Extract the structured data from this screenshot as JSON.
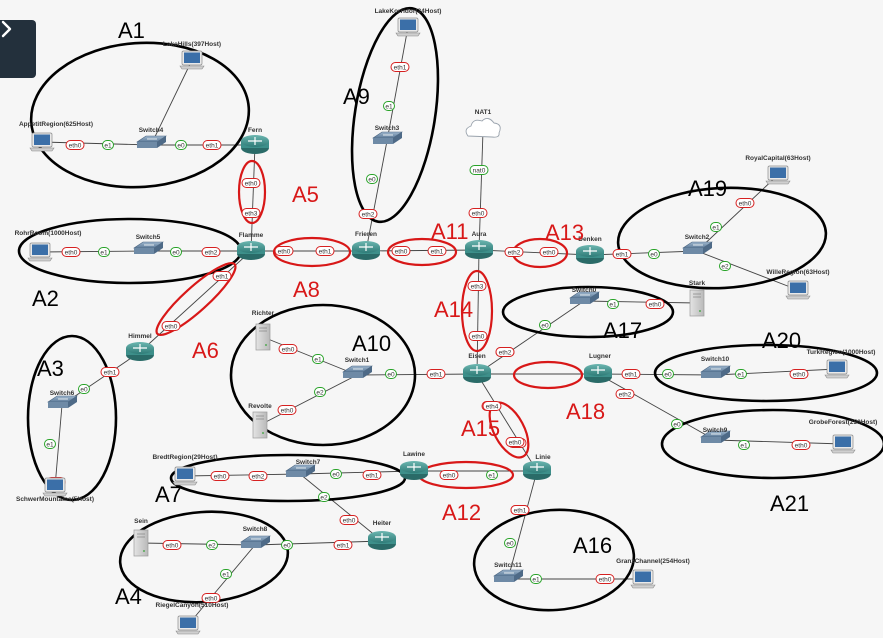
{
  "app": {
    "sidebar_toggle_icon": "chevron-right-icon"
  },
  "colors": {
    "link": "#444444",
    "port_eth_border": "#d62020",
    "port_e_border": "#29a329",
    "area_black": "#000000",
    "area_red": "#d81818",
    "router_fill": "#3d8f8a",
    "switch_fill": "#6e8aa6"
  },
  "nodes": [
    {
      "id": "lakehills",
      "label": "LakeHills(397Host)",
      "type": "host"
    },
    {
      "id": "apetit",
      "label": "AppetitRegion(625Host)",
      "type": "host"
    },
    {
      "id": "switch4",
      "label": "Switch4",
      "type": "switch"
    },
    {
      "id": "fern",
      "label": "Fern",
      "type": "router"
    },
    {
      "id": "lakekorridor",
      "label": "LakeKorridor(24Host)",
      "type": "host"
    },
    {
      "id": "switch3",
      "label": "Switch3",
      "type": "switch"
    },
    {
      "id": "nat1",
      "label": "NAT1",
      "type": "cloud"
    },
    {
      "id": "rohr",
      "label": "RohrRoom(1000Host)",
      "type": "host"
    },
    {
      "id": "switch5",
      "label": "Switch5",
      "type": "switch"
    },
    {
      "id": "flamme",
      "label": "Flamme",
      "type": "router"
    },
    {
      "id": "frieren",
      "label": "Frieren",
      "type": "router"
    },
    {
      "id": "aura",
      "label": "Aura",
      "type": "router"
    },
    {
      "id": "denken",
      "label": "Denken",
      "type": "router"
    },
    {
      "id": "royal",
      "label": "RoyalCapital(63Host)",
      "type": "host"
    },
    {
      "id": "switch2",
      "label": "Switch2",
      "type": "switch"
    },
    {
      "id": "wille",
      "label": "WilleRegion(63Host)",
      "type": "host"
    },
    {
      "id": "himmel",
      "label": "Himmel",
      "type": "router"
    },
    {
      "id": "richter",
      "label": "Richter",
      "type": "server"
    },
    {
      "id": "switch1",
      "label": "Switch1",
      "type": "switch"
    },
    {
      "id": "revolte",
      "label": "Revolte",
      "type": "server"
    },
    {
      "id": "switch0",
      "label": "Switch0",
      "type": "switch"
    },
    {
      "id": "stark",
      "label": "Stark",
      "type": "server"
    },
    {
      "id": "eisen",
      "label": "Eisen",
      "type": "router"
    },
    {
      "id": "lugner",
      "label": "Lugner",
      "type": "router"
    },
    {
      "id": "switch10",
      "label": "Switch10",
      "type": "switch"
    },
    {
      "id": "turk",
      "label": "TurkRegion(1000Host)",
      "type": "host"
    },
    {
      "id": "switch6",
      "label": "Switch6",
      "type": "switch"
    },
    {
      "id": "schwer",
      "label": "SchwerMountains(5Host)",
      "type": "host"
    },
    {
      "id": "bredt",
      "label": "BredtRegion(29Host)",
      "type": "host"
    },
    {
      "id": "switch7",
      "label": "Switch7",
      "type": "switch"
    },
    {
      "id": "lawine",
      "label": "Lawine",
      "type": "router"
    },
    {
      "id": "linie",
      "label": "Linie",
      "type": "router"
    },
    {
      "id": "switch9",
      "label": "Switch9",
      "type": "switch"
    },
    {
      "id": "grobe",
      "label": "GrobeForest(250Host)",
      "type": "host"
    },
    {
      "id": "heiter",
      "label": "Heiter",
      "type": "router"
    },
    {
      "id": "sein",
      "label": "Sein",
      "type": "server"
    },
    {
      "id": "switch8",
      "label": "Switch8",
      "type": "switch"
    },
    {
      "id": "riegel",
      "label": "RiegelCanyon(510Host)",
      "type": "host"
    },
    {
      "id": "switch11",
      "label": "Switch11",
      "type": "switch"
    },
    {
      "id": "granz",
      "label": "GranzChannel(254Host)",
      "type": "host"
    }
  ],
  "links": [
    [
      "lakehills",
      "switch4"
    ],
    [
      "apetit",
      "switch4"
    ],
    [
      "switch4",
      "fern"
    ],
    [
      "fern",
      "flamme"
    ],
    [
      "lakekorridor",
      "switch3"
    ],
    [
      "switch3",
      "frieren"
    ],
    [
      "nat1",
      "aura"
    ],
    [
      "rohr",
      "switch5"
    ],
    [
      "switch5",
      "flamme"
    ],
    [
      "flamme",
      "frieren"
    ],
    [
      "frieren",
      "aura"
    ],
    [
      "aura",
      "denken"
    ],
    [
      "denken",
      "switch2"
    ],
    [
      "switch2",
      "royal"
    ],
    [
      "switch2",
      "wille"
    ],
    [
      "flamme",
      "himmel"
    ],
    [
      "himmel",
      "switch6"
    ],
    [
      "switch6",
      "schwer"
    ],
    [
      "aura",
      "eisen"
    ],
    [
      "eisen",
      "switch0"
    ],
    [
      "switch0",
      "stark"
    ],
    [
      "richter",
      "switch1"
    ],
    [
      "revolte",
      "switch1"
    ],
    [
      "switch1",
      "eisen"
    ],
    [
      "eisen",
      "lugner"
    ],
    [
      "lugner",
      "switch10"
    ],
    [
      "switch10",
      "turk"
    ],
    [
      "lugner",
      "switch9"
    ],
    [
      "switch9",
      "grobe"
    ],
    [
      "eisen",
      "linie"
    ],
    [
      "linie",
      "lawine"
    ],
    [
      "lawine",
      "switch7"
    ],
    [
      "bredt",
      "switch7"
    ],
    [
      "switch7",
      "heiter"
    ],
    [
      "heiter",
      "switch8"
    ],
    [
      "sein",
      "switch8"
    ],
    [
      "switch8",
      "riegel"
    ],
    [
      "linie",
      "switch11"
    ],
    [
      "switch11",
      "granz"
    ]
  ],
  "ports": [
    {
      "label": "eth0",
      "type": "eth"
    },
    {
      "label": "e1",
      "type": "e"
    },
    {
      "label": "e0",
      "type": "e"
    },
    {
      "label": "eth1",
      "type": "eth"
    },
    {
      "label": "eth0",
      "type": "eth"
    },
    {
      "label": "eth3",
      "type": "eth"
    },
    {
      "label": "eth1",
      "type": "eth"
    },
    {
      "label": "e1",
      "type": "e"
    },
    {
      "label": "e0",
      "type": "e"
    },
    {
      "label": "eth2",
      "type": "eth"
    },
    {
      "label": "nat0",
      "type": "e"
    },
    {
      "label": "eth0",
      "type": "eth"
    },
    {
      "label": "eth0",
      "type": "eth"
    },
    {
      "label": "e1",
      "type": "e"
    },
    {
      "label": "e0",
      "type": "e"
    },
    {
      "label": "eth2",
      "type": "eth"
    },
    {
      "label": "eth0",
      "type": "eth"
    },
    {
      "label": "eth1",
      "type": "eth"
    },
    {
      "label": "eth2",
      "type": "eth"
    },
    {
      "label": "eth0",
      "type": "eth"
    },
    {
      "label": "eth1",
      "type": "eth"
    },
    {
      "label": "eth2",
      "type": "eth"
    },
    {
      "label": "eth0",
      "type": "eth"
    },
    {
      "label": "eth1",
      "type": "eth"
    },
    {
      "label": "e0",
      "type": "e"
    },
    {
      "label": "e1",
      "type": "e"
    },
    {
      "label": "eth0",
      "type": "eth"
    },
    {
      "label": "e2",
      "type": "e"
    },
    {
      "label": "eth1",
      "type": "eth"
    },
    {
      "label": "eth0",
      "type": "eth"
    },
    {
      "label": "eth1",
      "type": "eth"
    },
    {
      "label": "e0",
      "type": "e"
    },
    {
      "label": "e1",
      "type": "e"
    },
    {
      "label": "eth0",
      "type": "eth"
    },
    {
      "label": "eth3",
      "type": "eth"
    },
    {
      "label": "eth0",
      "type": "eth"
    },
    {
      "label": "e0",
      "type": "e"
    },
    {
      "label": "e1",
      "type": "e"
    },
    {
      "label": "eth0",
      "type": "eth"
    },
    {
      "label": "eth2",
      "type": "eth"
    },
    {
      "label": "eth0",
      "type": "eth"
    },
    {
      "label": "e1",
      "type": "e"
    },
    {
      "label": "e2",
      "type": "e"
    },
    {
      "label": "eth0",
      "type": "eth"
    },
    {
      "label": "e0",
      "type": "e"
    },
    {
      "label": "eth1",
      "type": "eth"
    },
    {
      "label": "eth3",
      "type": "eth"
    },
    {
      "label": "eth0",
      "type": "eth"
    },
    {
      "label": "eth1",
      "type": "eth"
    },
    {
      "label": "e0",
      "type": "e"
    },
    {
      "label": "e1",
      "type": "e"
    },
    {
      "label": "eth0",
      "type": "eth"
    },
    {
      "label": "eth2",
      "type": "eth"
    },
    {
      "label": "e0",
      "type": "e"
    },
    {
      "label": "e1",
      "type": "e"
    },
    {
      "label": "eth0",
      "type": "eth"
    },
    {
      "label": "eth4",
      "type": "eth"
    },
    {
      "label": "eth0",
      "type": "eth"
    },
    {
      "label": "eth0",
      "type": "eth"
    },
    {
      "label": "e1",
      "type": "e"
    },
    {
      "label": "e0",
      "type": "e"
    },
    {
      "label": "eth1",
      "type": "eth"
    },
    {
      "label": "e2",
      "type": "e"
    },
    {
      "label": "eth0",
      "type": "eth"
    },
    {
      "label": "eth0",
      "type": "eth"
    },
    {
      "label": "eth2",
      "type": "eth"
    },
    {
      "label": "eth1",
      "type": "eth"
    },
    {
      "label": "eth0",
      "type": "eth"
    },
    {
      "label": "e2",
      "type": "e"
    },
    {
      "label": "e0",
      "type": "e"
    },
    {
      "label": "eth1",
      "type": "eth"
    },
    {
      "label": "e1",
      "type": "e"
    },
    {
      "label": "eth0",
      "type": "eth"
    },
    {
      "label": "eth1",
      "type": "eth"
    },
    {
      "label": "e0",
      "type": "e"
    },
    {
      "label": "e1",
      "type": "e"
    },
    {
      "label": "eth0",
      "type": "eth"
    }
  ],
  "areas": [
    {
      "label": "A1",
      "color": "black"
    },
    {
      "label": "A2",
      "color": "black"
    },
    {
      "label": "A3",
      "color": "black"
    },
    {
      "label": "A4",
      "color": "black"
    },
    {
      "label": "A5",
      "color": "red"
    },
    {
      "label": "A6",
      "color": "red"
    },
    {
      "label": "A7",
      "color": "black"
    },
    {
      "label": "A8",
      "color": "red"
    },
    {
      "label": "A9",
      "color": "black"
    },
    {
      "label": "A10",
      "color": "black"
    },
    {
      "label": "A11",
      "color": "red"
    },
    {
      "label": "A12",
      "color": "red"
    },
    {
      "label": "A13",
      "color": "red"
    },
    {
      "label": "A14",
      "color": "red"
    },
    {
      "label": "A15",
      "color": "red"
    },
    {
      "label": "A16",
      "color": "black"
    },
    {
      "label": "A17",
      "color": "black"
    },
    {
      "label": "A18",
      "color": "red"
    },
    {
      "label": "A19",
      "color": "black"
    },
    {
      "label": "A20",
      "color": "black"
    },
    {
      "label": "A21",
      "color": "black"
    }
  ]
}
